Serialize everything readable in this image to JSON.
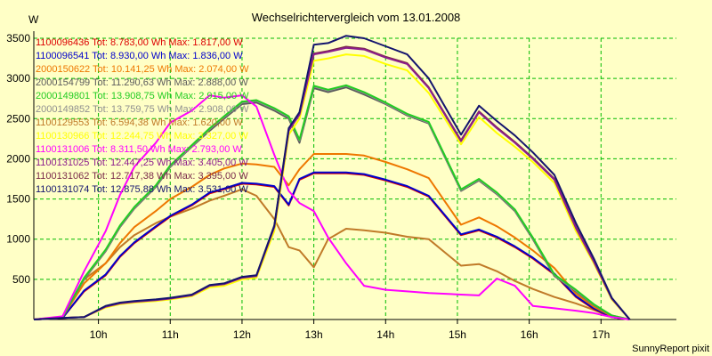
{
  "chart_data": {
    "type": "line",
    "title": "Wechselrichtervergleich vom 13.01.2008",
    "ylabel": "W",
    "xlabel": "",
    "footer": "SunnyReport pixit",
    "ylim": [
      0,
      3500
    ],
    "xlim": [
      9.1,
      18.05
    ],
    "yticks": [
      500,
      1000,
      1500,
      2000,
      2500,
      3000,
      3500
    ],
    "xticks": [
      {
        "v": 10,
        "label": "10h"
      },
      {
        "v": 11,
        "label": "11h"
      },
      {
        "v": 12,
        "label": "12h"
      },
      {
        "v": 13,
        "label": "13h"
      },
      {
        "v": 14,
        "label": "14h"
      },
      {
        "v": 15,
        "label": "15h"
      },
      {
        "v": 16,
        "label": "16h"
      },
      {
        "v": 17,
        "label": "17h"
      }
    ],
    "x": [
      9.1,
      9.5,
      9.8,
      10.1,
      10.3,
      10.5,
      10.8,
      11.0,
      11.3,
      11.55,
      11.75,
      12.0,
      12.2,
      12.45,
      12.65,
      12.8,
      13.0,
      13.2,
      13.45,
      13.7,
      14.0,
      14.3,
      14.6,
      15.05,
      15.3,
      15.55,
      15.8,
      16.05,
      16.35,
      16.65,
      16.9,
      17.15,
      17.4
    ],
    "series": [
      {
        "name": "1100096436",
        "legend": "1100096436 Tot: 8.783,00 Wh Max: 1.817,00 W",
        "color": "#dd0000",
        "values": [
          0,
          20,
          350,
          550,
          780,
          950,
          1150,
          1280,
          1420,
          1570,
          1620,
          1690,
          1680,
          1650,
          1420,
          1740,
          1820,
          1820,
          1820,
          1800,
          1730,
          1650,
          1530,
          1050,
          1110,
          1020,
          900,
          760,
          560,
          280,
          130,
          30,
          0
        ]
      },
      {
        "name": "1100096541",
        "legend": "1100096541 Tot: 8.930,00 Wh Max: 1.836,00 W",
        "color": "#0000cc",
        "values": [
          0,
          20,
          360,
          560,
          790,
          960,
          1160,
          1290,
          1430,
          1580,
          1630,
          1700,
          1690,
          1660,
          1430,
          1750,
          1830,
          1830,
          1830,
          1810,
          1740,
          1660,
          1540,
          1060,
          1120,
          1030,
          910,
          770,
          570,
          290,
          140,
          30,
          0
        ]
      },
      {
        "name": "2000150622",
        "legend": "2000150622 Tot: 10.141,25 Wh Max: 2.074,00 W",
        "color": "#ee7700",
        "values": [
          0,
          30,
          450,
          700,
          950,
          1150,
          1350,
          1500,
          1650,
          1800,
          1880,
          1940,
          1930,
          1900,
          1670,
          1870,
          2060,
          2060,
          2060,
          2040,
          1960,
          1870,
          1760,
          1180,
          1270,
          1160,
          1020,
          860,
          640,
          320,
          160,
          40,
          0
        ]
      },
      {
        "name": "2000154799",
        "legend": "2000154799 Tot: 11.290,63 Wh Max: 2.888,00 W",
        "color": "#5c5c5c",
        "values": [
          0,
          30,
          500,
          850,
          1150,
          1380,
          1650,
          1900,
          2150,
          2350,
          2500,
          2680,
          2700,
          2600,
          2500,
          2200,
          2880,
          2830,
          2890,
          2800,
          2680,
          2540,
          2440,
          1600,
          1730,
          1560,
          1350,
          1000,
          540,
          350,
          180,
          50,
          0
        ]
      },
      {
        "name": "2000149801",
        "legend": "2000149801 Tot: 13.908,75 Wh Max: 2.915,00 W",
        "color": "#22cc22",
        "values": [
          0,
          30,
          520,
          870,
          1170,
          1400,
          1670,
          1920,
          2170,
          2380,
          2530,
          2710,
          2730,
          2630,
          2530,
          2240,
          2910,
          2860,
          2915,
          2830,
          2700,
          2560,
          2460,
          1620,
          1750,
          1580,
          1370,
          1020,
          560,
          370,
          190,
          50,
          0
        ]
      },
      {
        "name": "2000149852",
        "legend": "2000149852 Tot: 13.759,75 Wh Max: 2.908,00 W",
        "color": "#909090",
        "values": [
          0,
          30,
          510,
          860,
          1160,
          1390,
          1660,
          1910,
          2160,
          2370,
          2520,
          2700,
          2720,
          2620,
          2520,
          2230,
          2900,
          2850,
          2908,
          2820,
          2690,
          2550,
          2450,
          1610,
          1740,
          1570,
          1360,
          1010,
          550,
          360,
          185,
          50,
          0
        ]
      },
      {
        "name": "1100129553",
        "legend": "1100129553 Tot: 6.594,38 Wh Max: 1.620,00 W",
        "color": "#c07a28",
        "values": [
          0,
          30,
          500,
          700,
          900,
          1050,
          1200,
          1280,
          1380,
          1480,
          1540,
          1620,
          1540,
          1250,
          900,
          860,
          650,
          1000,
          1130,
          1110,
          1080,
          1030,
          1000,
          670,
          690,
          600,
          480,
          380,
          280,
          200,
          120,
          30,
          0
        ]
      },
      {
        "name": "1100130966",
        "legend": "1100130966 Tot: 12.244,75 Wh Max: 3.327,00 W",
        "color": "#ffff00",
        "values": [
          0,
          20,
          30,
          150,
          190,
          210,
          230,
          250,
          290,
          400,
          420,
          500,
          520,
          1100,
          2300,
          2500,
          3220,
          3250,
          3300,
          3280,
          3180,
          3100,
          2820,
          2180,
          2520,
          2320,
          2150,
          1960,
          1700,
          1100,
          700,
          250,
          0
        ]
      },
      {
        "name": "1100131006",
        "legend": "1100131006 Tot: 8.311,50 Wh Max: 2.793,00 W",
        "color": "#ff00ff",
        "values": [
          0,
          40,
          600,
          1100,
          1550,
          1900,
          2200,
          2450,
          2600,
          2790,
          2760,
          2790,
          2650,
          2050,
          1600,
          1450,
          1350,
          1020,
          700,
          420,
          370,
          350,
          330,
          310,
          300,
          510,
          420,
          170,
          140,
          110,
          80,
          30,
          0
        ]
      },
      {
        "name": "1100131025",
        "legend": "1100131025 Tot: 12.447,25 Wh Max: 3.405,00 W",
        "color": "#8c1e8c",
        "values": [
          0,
          20,
          30,
          160,
          200,
          220,
          240,
          260,
          300,
          420,
          440,
          520,
          540,
          1150,
          2350,
          2550,
          3300,
          3330,
          3380,
          3360,
          3260,
          3180,
          2880,
          2220,
          2580,
          2380,
          2200,
          2000,
          1740,
          1140,
          720,
          260,
          0
        ]
      },
      {
        "name": "1100131062",
        "legend": "1100131062 Tot: 12.717,38 Wh Max: 3.395,00 W",
        "color": "#7a2a4a",
        "values": [
          0,
          20,
          30,
          165,
          205,
          225,
          245,
          265,
          305,
          425,
          445,
          525,
          545,
          1160,
          2360,
          2560,
          3310,
          3340,
          3395,
          3370,
          3270,
          3190,
          2890,
          2230,
          2590,
          2390,
          2210,
          2010,
          1750,
          1150,
          730,
          265,
          0
        ]
      },
      {
        "name": "1100131074",
        "legend": "1100131074 Tot: 12.875,88 Wh Max: 3.531,00 W",
        "color": "#14146e",
        "values": [
          0,
          20,
          30,
          170,
          210,
          230,
          250,
          270,
          310,
          430,
          450,
          530,
          550,
          1170,
          2380,
          2580,
          3420,
          3440,
          3531,
          3500,
          3400,
          3300,
          3000,
          2300,
          2660,
          2470,
          2290,
          2080,
          1800,
          1200,
          760,
          270,
          0
        ]
      }
    ]
  }
}
